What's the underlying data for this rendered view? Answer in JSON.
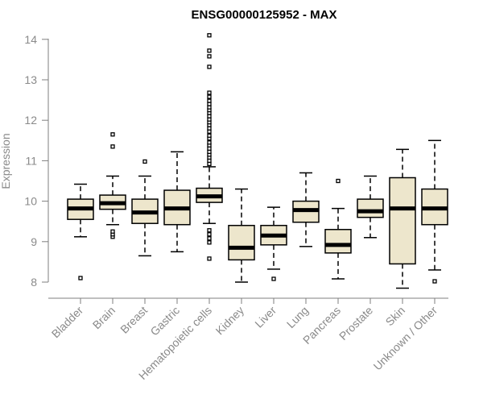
{
  "chart_data": {
    "type": "boxplot",
    "title": "ENSG00000125952 - MAX",
    "xlabel": "",
    "ylabel": "Expression",
    "ylim": [
      7.9,
      14.15
    ],
    "yticks": [
      8,
      9,
      10,
      11,
      12,
      13,
      14
    ],
    "grid": false,
    "colors": {
      "box_fill": "#ede6cc",
      "box_stroke": "#000000",
      "axis": "#7f7f7f",
      "label": "#8a8a8a"
    },
    "categories": [
      "Bladder",
      "Brain",
      "Breast",
      "Gastric",
      "Hematopoietic cells",
      "Kidney",
      "Liver",
      "Lung",
      "Pancreas",
      "Prostate",
      "Skin",
      "Unknown / Other"
    ],
    "boxes": [
      {
        "name": "Bladder",
        "whislo": 9.12,
        "q1": 9.55,
        "med": 9.82,
        "q3": 10.05,
        "whishi": 10.42,
        "fliers": [
          8.1
        ]
      },
      {
        "name": "Brain",
        "whislo": 9.42,
        "q1": 9.8,
        "med": 9.95,
        "q3": 10.15,
        "whishi": 10.62,
        "fliers": [
          9.12,
          9.18,
          9.25,
          11.35,
          11.65
        ]
      },
      {
        "name": "Breast",
        "whislo": 8.65,
        "q1": 9.45,
        "med": 9.72,
        "q3": 10.05,
        "whishi": 10.62,
        "fliers": [
          10.98
        ]
      },
      {
        "name": "Gastric",
        "whislo": 8.75,
        "q1": 9.42,
        "med": 9.82,
        "q3": 10.27,
        "whishi": 11.22,
        "fliers": []
      },
      {
        "name": "Hematopoietic cells",
        "whislo": 9.45,
        "q1": 9.97,
        "med": 10.12,
        "q3": 10.32,
        "whishi": 10.85,
        "fliers": [
          8.58,
          8.98,
          9.08,
          9.18,
          9.28,
          10.92,
          11.0,
          11.08,
          11.15,
          11.22,
          11.3,
          11.38,
          11.45,
          11.55,
          11.62,
          11.72,
          11.8,
          11.88,
          11.95,
          12.02,
          12.1,
          12.18,
          12.25,
          12.32,
          12.4,
          12.48,
          12.58,
          12.68,
          13.32,
          13.58,
          13.72,
          14.1
        ]
      },
      {
        "name": "Kidney",
        "whislo": 8.0,
        "q1": 8.55,
        "med": 8.85,
        "q3": 9.4,
        "whishi": 10.3,
        "fliers": []
      },
      {
        "name": "Liver",
        "whislo": 8.32,
        "q1": 8.92,
        "med": 9.15,
        "q3": 9.4,
        "whishi": 9.85,
        "fliers": [
          8.08
        ]
      },
      {
        "name": "Lung",
        "whislo": 8.88,
        "q1": 9.48,
        "med": 9.78,
        "q3": 10.0,
        "whishi": 10.7,
        "fliers": []
      },
      {
        "name": "Pancreas",
        "whislo": 8.08,
        "q1": 8.72,
        "med": 8.92,
        "q3": 9.3,
        "whishi": 9.82,
        "fliers": [
          10.5
        ]
      },
      {
        "name": "Prostate",
        "whislo": 9.1,
        "q1": 9.6,
        "med": 9.75,
        "q3": 10.05,
        "whishi": 10.62,
        "fliers": []
      },
      {
        "name": "Skin",
        "whislo": 7.85,
        "q1": 8.45,
        "med": 9.82,
        "q3": 10.58,
        "whishi": 11.28,
        "fliers": []
      },
      {
        "name": "Unknown / Other",
        "whislo": 8.3,
        "q1": 9.42,
        "med": 9.82,
        "q3": 10.3,
        "whishi": 11.5,
        "fliers": [
          8.02
        ]
      }
    ]
  }
}
